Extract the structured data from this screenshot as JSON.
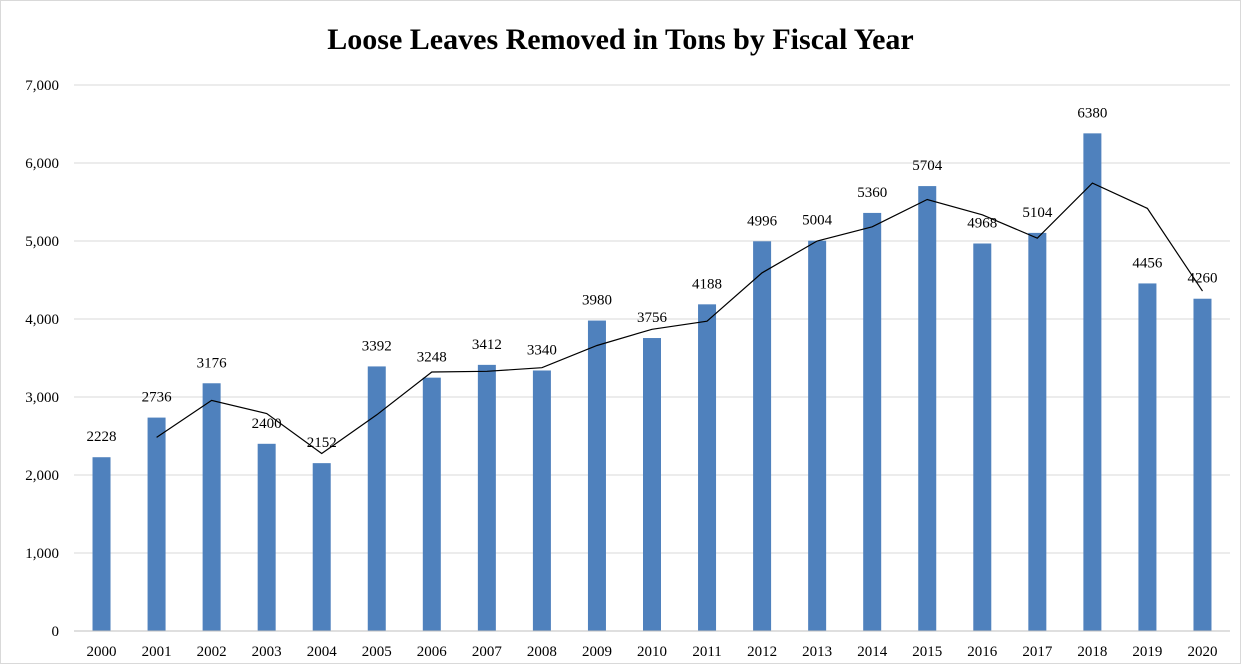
{
  "chart_data": {
    "type": "bar",
    "title": "Loose Leaves Removed in Tons by Fiscal Year",
    "xlabel": "",
    "ylabel": "",
    "ylim": [
      0,
      7000
    ],
    "yticks": [
      "0",
      "1,000",
      "2,000",
      "3,000",
      "4,000",
      "5,000",
      "6,000",
      "7,000"
    ],
    "yticks_values": [
      0,
      1000,
      2000,
      3000,
      4000,
      5000,
      6000,
      7000
    ],
    "categories": [
      "2000",
      "2001",
      "2002",
      "2003",
      "2004",
      "2005",
      "2006",
      "2007",
      "2008",
      "2009",
      "2010",
      "2011",
      "2012",
      "2013",
      "2014",
      "2015",
      "2016",
      "2017",
      "2018",
      "2019",
      "2020"
    ],
    "series": [
      {
        "values": [
          2228,
          2736,
          3176,
          2400,
          2152,
          3392,
          3248,
          3412,
          3340,
          3980,
          3756,
          4188,
          4996,
          5004,
          5360,
          5704,
          4968,
          5104,
          6380,
          4456,
          4260
        ],
        "color": "#4f81bd"
      }
    ],
    "trendline": {
      "type": "2-period moving average",
      "color": "#000000"
    },
    "grid": true,
    "legend": "none"
  }
}
